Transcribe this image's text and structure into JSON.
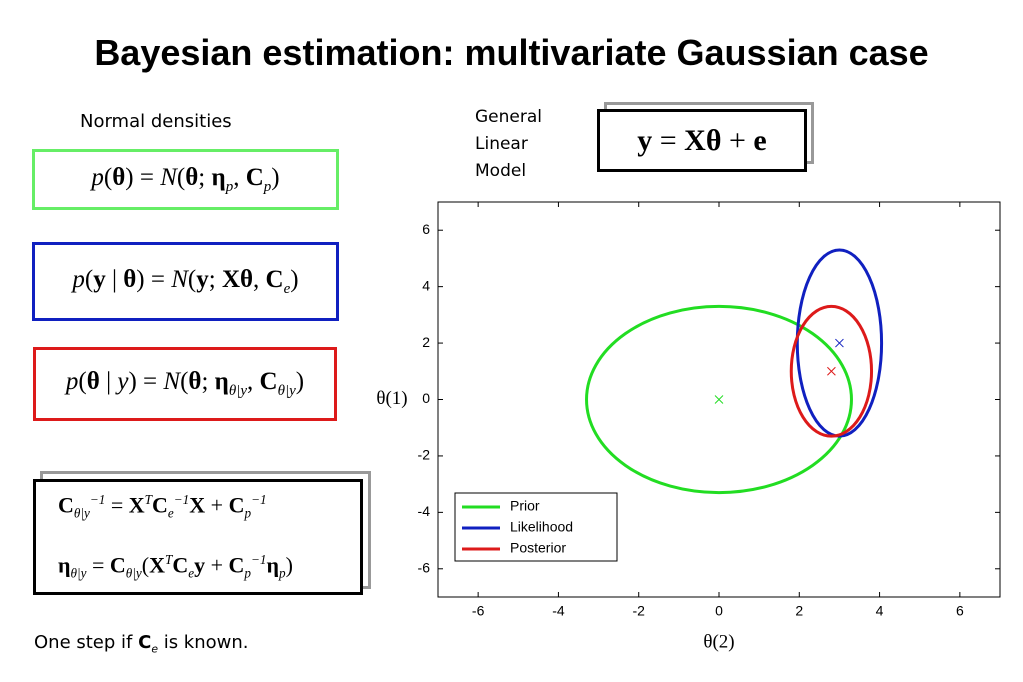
{
  "title": "Bayesian estimation: multivariate Gaussian case",
  "densities_heading": "Normal densities",
  "model_label": [
    "General",
    "Linear",
    "Model"
  ],
  "model_equation": [
    {
      "b": "y"
    },
    {
      "t": " = "
    },
    {
      "b": "Xθ"
    },
    {
      "t": " + "
    },
    {
      "b": "e"
    }
  ],
  "equations": [
    [
      {
        "i": "p"
      },
      {
        "t": "("
      },
      {
        "b": "θ"
      },
      {
        "t": ") = "
      },
      {
        "i": "N"
      },
      {
        "t": "("
      },
      {
        "b": "θ"
      },
      {
        "t": "; "
      },
      {
        "b": "η"
      },
      {
        "sub": "p"
      },
      {
        "t": ", "
      },
      {
        "b": "C"
      },
      {
        "sub": "p"
      },
      {
        "t": ")"
      }
    ],
    [
      {
        "i": "p"
      },
      {
        "t": "("
      },
      {
        "b": "y"
      },
      {
        "t": " | "
      },
      {
        "b": "θ"
      },
      {
        "t": ") = "
      },
      {
        "i": "N"
      },
      {
        "t": "("
      },
      {
        "b": "y"
      },
      {
        "t": "; "
      },
      {
        "b": "Xθ"
      },
      {
        "t": ", "
      },
      {
        "b": "C"
      },
      {
        "sub": "e"
      },
      {
        "t": ")"
      }
    ],
    [
      {
        "i": "p"
      },
      {
        "t": "("
      },
      {
        "b": "θ"
      },
      {
        "t": " | "
      },
      {
        "i": "y"
      },
      {
        "t": ") = "
      },
      {
        "i": "N"
      },
      {
        "t": "("
      },
      {
        "b": "θ"
      },
      {
        "t": "; "
      },
      {
        "b": "η"
      },
      {
        "sub": "θ|y"
      },
      {
        "t": ", "
      },
      {
        "b": "C"
      },
      {
        "sub": "θ|y"
      },
      {
        "t": ")"
      }
    ]
  ],
  "posterior_equations": [
    [
      {
        "b": "C"
      },
      {
        "sub": "θ|y"
      },
      {
        "sup": "−1"
      },
      {
        "t": " = "
      },
      {
        "b": "X"
      },
      {
        "sup": "T"
      },
      {
        "b": "C"
      },
      {
        "sub": "e"
      },
      {
        "sup": "−1"
      },
      {
        "b": "X"
      },
      {
        "t": " + "
      },
      {
        "b": "C"
      },
      {
        "sub": "p"
      },
      {
        "sup": "−1"
      }
    ],
    [
      {
        "b": "η"
      },
      {
        "sub": "θ|y"
      },
      {
        "t": " = "
      },
      {
        "b": "C"
      },
      {
        "sub": "θ|y"
      },
      {
        "t": "("
      },
      {
        "b": "X"
      },
      {
        "sup": "T"
      },
      {
        "b": "C"
      },
      {
        "sub": "e"
      },
      {
        "b": "y"
      },
      {
        "t": " + "
      },
      {
        "b": "C"
      },
      {
        "sub": "p"
      },
      {
        "sup": "−1"
      },
      {
        "b": "η"
      },
      {
        "sub": "p"
      },
      {
        "t": ")"
      }
    ]
  ],
  "note": [
    {
      "t": "One step if "
    },
    {
      "b": "C"
    },
    {
      "sub": "e"
    },
    {
      "t": " is known."
    }
  ],
  "chart_data": {
    "type": "ellipse",
    "xlabel": "θ(2)",
    "ylabel": "θ(1)",
    "xlim": [
      -7,
      7
    ],
    "ylim": [
      -7,
      7
    ],
    "xticks": [
      -6,
      -4,
      -2,
      0,
      2,
      4,
      6
    ],
    "yticks": [
      -6,
      -4,
      -2,
      0,
      2,
      4,
      6
    ],
    "legend": "lower left",
    "series": [
      {
        "name": "Prior",
        "color": "#22dd22",
        "center": [
          0,
          0
        ],
        "radii": [
          3.3,
          3.3
        ]
      },
      {
        "name": "Likelihood",
        "color": "#1020c0",
        "center": [
          3,
          2
        ],
        "radii": [
          1.05,
          3.3
        ]
      },
      {
        "name": "Posterior",
        "color": "#dd1a1a",
        "center": [
          2.8,
          1
        ],
        "radii": [
          1.0,
          2.3
        ]
      }
    ]
  }
}
